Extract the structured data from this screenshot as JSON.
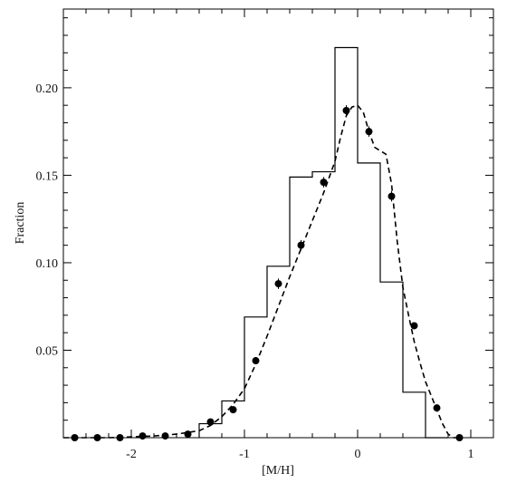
{
  "chart_data": {
    "type": "line",
    "title": "",
    "xlabel": "[M/H]",
    "ylabel": "Fraction",
    "xlim": [
      -2.6,
      1.2
    ],
    "ylim": [
      0.0,
      0.245
    ],
    "x_ticks": [
      {
        "value": -2,
        "label": "-2"
      },
      {
        "value": -1,
        "label": "-1"
      },
      {
        "value": 0,
        "label": "0"
      },
      {
        "value": 1,
        "label": "1"
      }
    ],
    "y_ticks": [
      {
        "value": 0.05,
        "label": "0.05"
      },
      {
        "value": 0.1,
        "label": "0.10"
      },
      {
        "value": 0.15,
        "label": "0.15"
      },
      {
        "value": 0.2,
        "label": "0.20"
      }
    ],
    "grid": false,
    "legend": null,
    "series": [
      {
        "style": "histogram-step",
        "color": "#000000",
        "bin_edges": [
          -1.4,
          -1.2,
          -1.0,
          -0.8,
          -0.6,
          -0.4,
          -0.2,
          0.0,
          0.2,
          0.4,
          0.6,
          0.8
        ],
        "values": [
          0.008,
          0.021,
          0.069,
          0.098,
          0.149,
          0.152,
          0.223,
          0.157,
          0.089,
          0.026,
          0.0
        ]
      },
      {
        "style": "dashed-line",
        "color": "#000000",
        "points": [
          [
            -2.6,
            0.0
          ],
          [
            -2.2,
            0.0
          ],
          [
            -1.8,
            0.001
          ],
          [
            -1.6,
            0.002
          ],
          [
            -1.4,
            0.004
          ],
          [
            -1.3,
            0.007
          ],
          [
            -1.2,
            0.012
          ],
          [
            -1.1,
            0.019
          ],
          [
            -1.0,
            0.028
          ],
          [
            -0.9,
            0.042
          ],
          [
            -0.8,
            0.058
          ],
          [
            -0.7,
            0.075
          ],
          [
            -0.6,
            0.092
          ],
          [
            -0.5,
            0.108
          ],
          [
            -0.4,
            0.124
          ],
          [
            -0.3,
            0.14
          ],
          [
            -0.2,
            0.158
          ],
          [
            -0.15,
            0.172
          ],
          [
            -0.1,
            0.184
          ],
          [
            -0.05,
            0.189
          ],
          [
            0.0,
            0.19
          ],
          [
            0.05,
            0.186
          ],
          [
            0.1,
            0.175
          ],
          [
            0.15,
            0.166
          ],
          [
            0.2,
            0.164
          ],
          [
            0.25,
            0.162
          ],
          [
            0.3,
            0.145
          ],
          [
            0.35,
            0.112
          ],
          [
            0.4,
            0.086
          ],
          [
            0.45,
            0.07
          ],
          [
            0.5,
            0.055
          ],
          [
            0.55,
            0.043
          ],
          [
            0.6,
            0.032
          ],
          [
            0.65,
            0.024
          ],
          [
            0.7,
            0.016
          ],
          [
            0.75,
            0.008
          ],
          [
            0.8,
            0.002
          ],
          [
            0.85,
            0.0
          ],
          [
            0.92,
            0.0
          ]
        ]
      },
      {
        "style": "points-with-errorbars",
        "color": "#000000",
        "points": [
          {
            "x": -2.5,
            "y": 0.0,
            "err": 0.001
          },
          {
            "x": -2.3,
            "y": 0.0,
            "err": 0.001
          },
          {
            "x": -2.1,
            "y": 0.0,
            "err": 0.001
          },
          {
            "x": -1.9,
            "y": 0.001,
            "err": 0.001
          },
          {
            "x": -1.7,
            "y": 0.001,
            "err": 0.001
          },
          {
            "x": -1.5,
            "y": 0.002,
            "err": 0.001
          },
          {
            "x": -1.3,
            "y": 0.009,
            "err": 0.001
          },
          {
            "x": -1.1,
            "y": 0.016,
            "err": 0.002
          },
          {
            "x": -0.9,
            "y": 0.044,
            "err": 0.002
          },
          {
            "x": -0.7,
            "y": 0.088,
            "err": 0.003
          },
          {
            "x": -0.5,
            "y": 0.11,
            "err": 0.003
          },
          {
            "x": -0.3,
            "y": 0.146,
            "err": 0.003
          },
          {
            "x": -0.1,
            "y": 0.187,
            "err": 0.003
          },
          {
            "x": 0.1,
            "y": 0.175,
            "err": 0.003
          },
          {
            "x": 0.3,
            "y": 0.138,
            "err": 0.003
          },
          {
            "x": 0.5,
            "y": 0.064,
            "err": 0.002
          },
          {
            "x": 0.7,
            "y": 0.017,
            "err": 0.001
          },
          {
            "x": 0.9,
            "y": 0.0,
            "err": 0.001
          }
        ]
      }
    ]
  }
}
